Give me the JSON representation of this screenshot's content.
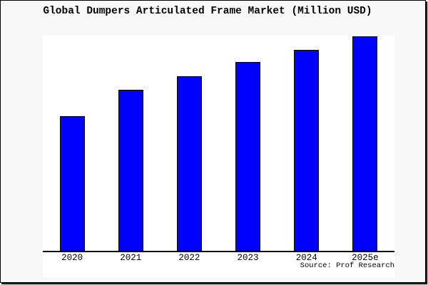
{
  "title": "Global Dumpers Articulated Frame Market (Million USD)",
  "source": "Source: Prof Research",
  "colors": {
    "bar_fill": "#0000ff",
    "bar_border": "#000000",
    "figure_bg": "#f8f8f8",
    "plot_bg": "#ffffff",
    "axis_line": "#000000"
  },
  "chart_data": {
    "type": "bar",
    "title": "Global Dumpers Articulated Frame Market (Million USD)",
    "categories": [
      "2020",
      "2021",
      "2022",
      "2023",
      "2024",
      "2025e"
    ],
    "values": [
      62.8,
      75.2,
      81.5,
      87.9,
      93.7,
      100
    ],
    "value_scale_note": "No y-axis ticks or gridlines are shown in the image; values are bar heights normalized to the tallest bar (2025e = 100).",
    "xlabel": "",
    "ylabel": "",
    "ylim": [
      0,
      100
    ],
    "grid": false,
    "legend": null,
    "annotations": [
      "Source: Prof Research"
    ]
  }
}
